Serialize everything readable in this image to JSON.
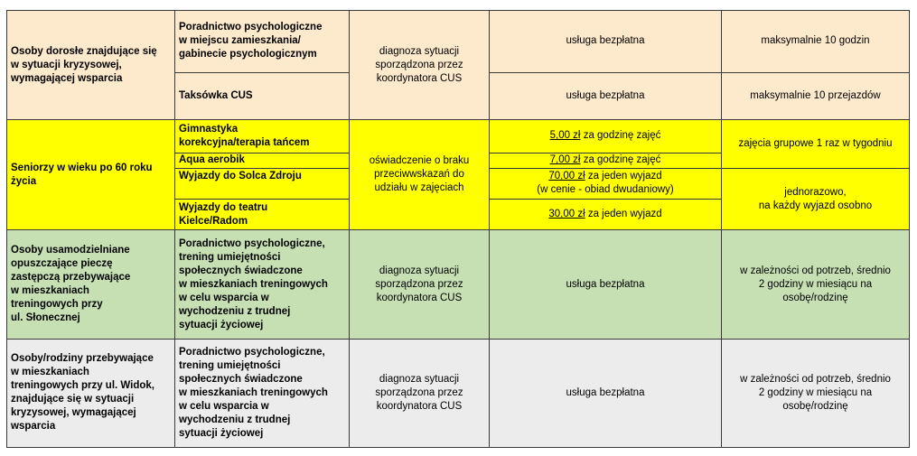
{
  "rows": [
    {
      "group": "Osoby dorosłe znajdujące się\nw sytuacji kryzysowej,\nwymagającej wsparcia",
      "condition": "diagnoza sytuacji\nsporządzona przez\nkoordynatora CUS",
      "services": [
        {
          "name": "Poradnictwo psychologiczne\nw miejscu zamieszkania/\ngabinecie psychologicznym",
          "cost": "usługa bezpłatna",
          "limit": "maksymalnie 10 godzin"
        },
        {
          "name": "Taksówka CUS",
          "cost": "usługa bezpłatna",
          "limit": "maksymalnie 10 przejazdów"
        }
      ]
    },
    {
      "group": "Seniorzy w wieku po 60 roku\nżycia",
      "condition": "oświadczenie o braku\nprzeciwwskazań do\nudziału w zajęciach",
      "limit_a": "zajęcia grupowe 1 raz w tygodniu",
      "limit_b": "jednorazowo,\nna każdy wyjazd osobno",
      "services": [
        {
          "name": "Gimnastyka\nkorekcyjna/terapia tańcem",
          "price": "5,00 zł",
          "price_rest": " za godzinę zajęć"
        },
        {
          "name": "Aqua aerobik",
          "price": "7,00 zł",
          "price_rest": " za godzinę zajęć"
        },
        {
          "name": "Wyjazdy do Solca Zdroju",
          "price": "70,00 zł",
          "price_rest": " za jeden wyjazd",
          "price_note": "(w cenie - obiad dwudaniowy)"
        },
        {
          "name": "Wyjazdy do teatru\nKielce/Radom",
          "price": "30,00 zł",
          "price_rest": " za jeden wyjazd"
        }
      ]
    },
    {
      "group": "Osoby usamodzielniane\nopuszczające pieczę\nzastępczą przebywające\nw mieszkaniach\ntreningowych  przy\nul. Słonecznej",
      "service": "Poradnictwo psychologiczne,\ntrening umiejętności\nspołecznych świadczone\nw mieszkaniach treningowych\nw celu wsparcia w\nwychodzeniu z trudnej\nsytuacji życiowej",
      "condition": "diagnoza sytuacji\nsporządzona przez\nkoordynatora CUS",
      "cost": "usługa bezpłatna",
      "limit": "w zależności od potrzeb, średnio\n2 godziny w miesiącu na\nosobę/rodzinę"
    },
    {
      "group": "Osoby/rodziny przebywające\nw mieszkaniach\ntreningowych przy ul. Widok,\nznajdujące się w sytuacji\nkryzysowej, wymagającej\nwsparcia",
      "service": "Poradnictwo psychologiczne,\ntrening umiejętności\nspołecznych świadczone\nw mieszkaniach treningowych\nw celu wsparcia w\nwychodzeniu z trudnej\nsytuacji życiowej",
      "condition": "diagnoza sytuacji\nsporządzona przez\nkoordynatora CUS",
      "cost": "usługa bezpłatna",
      "limit": "w zależności od potrzeb, średnio\n2 godziny w miesiącu na\nosobę/rodzinę"
    }
  ],
  "colors": {
    "beige": "#fde9cc",
    "yellow": "#ffff00",
    "green": "#c6e0b4",
    "grey": "#ececec"
  }
}
